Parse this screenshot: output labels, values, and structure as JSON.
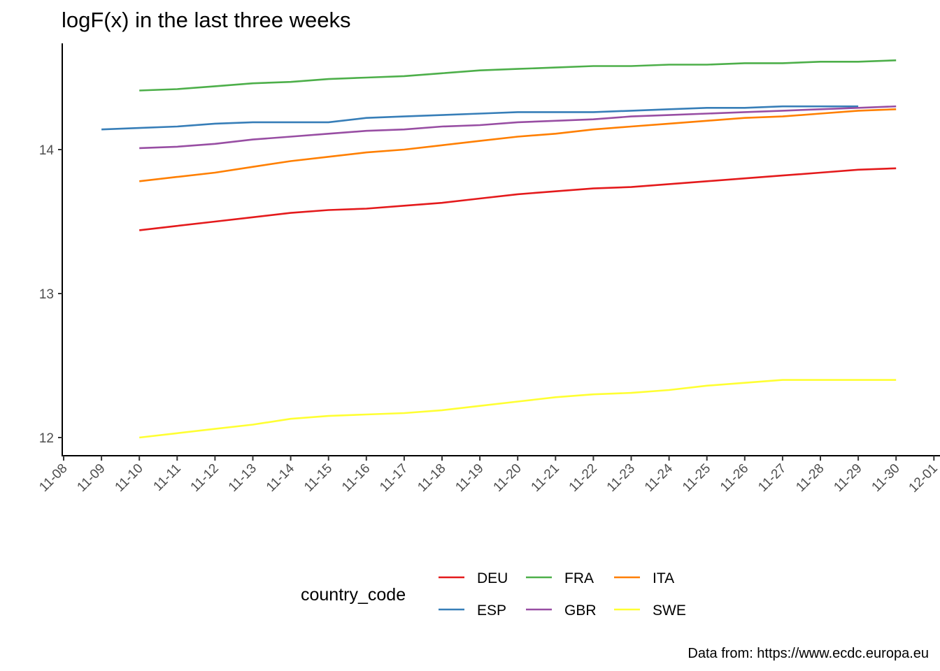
{
  "chart_data": {
    "type": "line",
    "title": "logF(x) in the last three weeks",
    "caption": "Data from: https://www.ecdc.europa.eu",
    "xlabel": "",
    "ylabel": "",
    "legend_title": "country_code",
    "legend_position": "bottom",
    "grid": false,
    "xlim": [
      "11-08",
      "12-01"
    ],
    "ylim": [
      11.95,
      14.75
    ],
    "y_ticks": [
      12,
      13,
      14
    ],
    "x_ticks": [
      "11-08",
      "11-09",
      "11-10",
      "11-11",
      "11-12",
      "11-13",
      "11-14",
      "11-15",
      "11-16",
      "11-17",
      "11-18",
      "11-19",
      "11-20",
      "11-21",
      "11-22",
      "11-23",
      "11-24",
      "11-25",
      "11-26",
      "11-27",
      "11-28",
      "11-29",
      "11-30",
      "12-01"
    ],
    "series": [
      {
        "name": "DEU",
        "color": "#E41A1C",
        "x": [
          "11-10",
          "11-11",
          "11-12",
          "11-13",
          "11-14",
          "11-15",
          "11-16",
          "11-17",
          "11-18",
          "11-19",
          "11-20",
          "11-21",
          "11-22",
          "11-23",
          "11-24",
          "11-25",
          "11-26",
          "11-27",
          "11-28",
          "11-29",
          "11-30"
        ],
        "y": [
          13.44,
          13.47,
          13.5,
          13.53,
          13.56,
          13.58,
          13.59,
          13.61,
          13.63,
          13.66,
          13.69,
          13.71,
          13.73,
          13.74,
          13.76,
          13.78,
          13.8,
          13.82,
          13.84,
          13.86,
          13.87
        ]
      },
      {
        "name": "ESP",
        "color": "#377EB8",
        "x": [
          "11-09",
          "11-10",
          "11-11",
          "11-12",
          "11-13",
          "11-14",
          "11-15",
          "11-16",
          "11-17",
          "11-18",
          "11-19",
          "11-20",
          "11-21",
          "11-22",
          "11-23",
          "11-24",
          "11-25",
          "11-26",
          "11-27",
          "11-28",
          "11-29"
        ],
        "y": [
          14.14,
          14.15,
          14.16,
          14.18,
          14.19,
          14.19,
          14.19,
          14.22,
          14.23,
          14.24,
          14.25,
          14.26,
          14.26,
          14.26,
          14.27,
          14.28,
          14.29,
          14.29,
          14.3,
          14.3,
          14.3
        ]
      },
      {
        "name": "FRA",
        "color": "#4DAF4A",
        "x": [
          "11-10",
          "11-11",
          "11-12",
          "11-13",
          "11-14",
          "11-15",
          "11-16",
          "11-17",
          "11-18",
          "11-19",
          "11-20",
          "11-21",
          "11-22",
          "11-23",
          "11-24",
          "11-25",
          "11-26",
          "11-27",
          "11-28",
          "11-29",
          "11-30"
        ],
        "y": [
          14.41,
          14.42,
          14.44,
          14.46,
          14.47,
          14.49,
          14.5,
          14.51,
          14.53,
          14.55,
          14.56,
          14.57,
          14.58,
          14.58,
          14.59,
          14.59,
          14.6,
          14.6,
          14.61,
          14.61,
          14.62
        ]
      },
      {
        "name": "GBR",
        "color": "#984EA3",
        "x": [
          "11-10",
          "11-11",
          "11-12",
          "11-13",
          "11-14",
          "11-15",
          "11-16",
          "11-17",
          "11-18",
          "11-19",
          "11-20",
          "11-21",
          "11-22",
          "11-23",
          "11-24",
          "11-25",
          "11-26",
          "11-27",
          "11-28",
          "11-29",
          "11-30"
        ],
        "y": [
          14.01,
          14.02,
          14.04,
          14.07,
          14.09,
          14.11,
          14.13,
          14.14,
          14.16,
          14.17,
          14.19,
          14.2,
          14.21,
          14.23,
          14.24,
          14.25,
          14.26,
          14.27,
          14.28,
          14.29,
          14.3
        ]
      },
      {
        "name": "ITA",
        "color": "#FF7F00",
        "x": [
          "11-10",
          "11-11",
          "11-12",
          "11-13",
          "11-14",
          "11-15",
          "11-16",
          "11-17",
          "11-18",
          "11-19",
          "11-20",
          "11-21",
          "11-22",
          "11-23",
          "11-24",
          "11-25",
          "11-26",
          "11-27",
          "11-28",
          "11-29",
          "11-30"
        ],
        "y": [
          13.78,
          13.81,
          13.84,
          13.88,
          13.92,
          13.95,
          13.98,
          14.0,
          14.03,
          14.06,
          14.09,
          14.11,
          14.14,
          14.16,
          14.18,
          14.2,
          14.22,
          14.23,
          14.25,
          14.27,
          14.28
        ]
      },
      {
        "name": "SWE",
        "color": "#FFFF33",
        "x": [
          "11-10",
          "11-11",
          "11-12",
          "11-13",
          "11-14",
          "11-15",
          "11-16",
          "11-17",
          "11-18",
          "11-19",
          "11-20",
          "11-21",
          "11-22",
          "11-23",
          "11-24",
          "11-25",
          "11-26",
          "11-27",
          "11-28",
          "11-29",
          "11-30"
        ],
        "y": [
          12.0,
          12.03,
          12.06,
          12.09,
          12.13,
          12.15,
          12.16,
          12.17,
          12.19,
          12.22,
          12.25,
          12.28,
          12.3,
          12.31,
          12.33,
          12.36,
          12.38,
          12.4,
          12.4,
          12.4,
          12.4
        ]
      }
    ]
  }
}
